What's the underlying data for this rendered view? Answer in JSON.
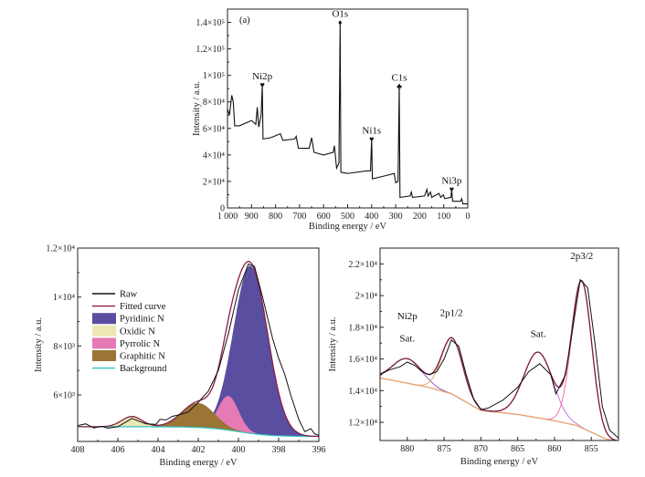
{
  "chart_data": [
    {
      "type": "line",
      "panel_label": "(a)",
      "xlabel": "Binding energy / eV",
      "ylabel": "Intensity / a.u.",
      "xlim": [
        1000,
        0
      ],
      "ylim": [
        0,
        150000
      ],
      "x_ticks": [
        1000,
        900,
        800,
        700,
        600,
        500,
        400,
        300,
        200,
        100,
        0
      ],
      "x_tick_labels": [
        "1 000",
        "900",
        "800",
        "700",
        "600",
        "500",
        "400",
        "300",
        "200",
        "100",
        "0"
      ],
      "y_ticks": [
        0,
        20000,
        40000,
        60000,
        80000,
        100000,
        120000,
        140000
      ],
      "y_tick_labels": [
        "0",
        "2×10⁴",
        "4×10⁴",
        "6×10⁴",
        "8×10⁴",
        "1×10⁵",
        "1.2×10⁵",
        "1.4×10⁵"
      ],
      "grid": false,
      "series": [
        {
          "color": "#111111",
          "points": [
            [
              1000,
              75000
            ],
            [
              992,
              70000
            ],
            [
              982,
              85000
            ],
            [
              976,
              80000
            ],
            [
              970,
              62000
            ],
            [
              950,
              62000
            ],
            [
              900,
              66000
            ],
            [
              882,
              63000
            ],
            [
              876,
              76000
            ],
            [
              870,
              61000
            ],
            [
              860,
              70000
            ],
            [
              855,
              93000
            ],
            [
              852,
              52000
            ],
            [
              820,
              53000
            ],
            [
              780,
              56000
            ],
            [
              770,
              51000
            ],
            [
              720,
              52000
            ],
            [
              714,
              54000
            ],
            [
              705,
              45000
            ],
            [
              660,
              45000
            ],
            [
              650,
              53000
            ],
            [
              640,
              42000
            ],
            [
              600,
              40000
            ],
            [
              560,
              42000
            ],
            [
              555,
              47000
            ],
            [
              546,
              30000
            ],
            [
              536,
              34000
            ],
            [
              531,
              140000
            ],
            [
              528,
              27000
            ],
            [
              500,
              26000
            ],
            [
              420,
              28000
            ],
            [
              405,
              28000
            ],
            [
              400,
              52000
            ],
            [
              397,
              22000
            ],
            [
              350,
              24000
            ],
            [
              306,
              26000
            ],
            [
              300,
              19000
            ],
            [
              290,
              20000
            ],
            [
              285,
              92000
            ],
            [
              282,
              8000
            ],
            [
              240,
              9000
            ],
            [
              235,
              12000
            ],
            [
              230,
              8000
            ],
            [
              180,
              9000
            ],
            [
              170,
              14000
            ],
            [
              165,
              9000
            ],
            [
              155,
              12000
            ],
            [
              150,
              8000
            ],
            [
              120,
              11000
            ],
            [
              112,
              8000
            ],
            [
              102,
              10000
            ],
            [
              96,
              7000
            ],
            [
              70,
              8000
            ],
            [
              67,
              14000
            ],
            [
              63,
              5000
            ],
            [
              30,
              5000
            ],
            [
              25,
              7000
            ],
            [
              20,
              3000
            ],
            [
              0,
              3000
            ]
          ]
        }
      ],
      "annotations": [
        {
          "text": "O1s",
          "marker": "diamond",
          "x": 531,
          "y": 140000
        },
        {
          "text": "Ni2p",
          "marker": "heart",
          "x": 855,
          "y": 93000
        },
        {
          "text": "C1s",
          "marker": "club",
          "x": 285,
          "y": 92000
        },
        {
          "text": "Ni1s",
          "marker": "heart",
          "x": 400,
          "y": 52000
        },
        {
          "text": "Ni3p",
          "marker": "heart",
          "x": 67,
          "y": 14000
        }
      ]
    },
    {
      "type": "line",
      "xlabel": "Binding energy / eV",
      "ylabel": "Intensity / a.u.",
      "xlim": [
        408,
        396
      ],
      "ylim": [
        4100,
        12000
      ],
      "x_ticks": [
        408,
        406,
        404,
        402,
        400,
        398,
        396
      ],
      "x_tick_labels": [
        "408",
        "406",
        "404",
        "402",
        "400",
        "398",
        "396"
      ],
      "y_ticks": [
        6000,
        8000,
        10000,
        12000
      ],
      "y_tick_labels": [
        "6×10³",
        "8×10³",
        "1×10⁴",
        "1.2×10⁴"
      ],
      "grid": false,
      "legend_position": "left",
      "background": {
        "name": "Background",
        "color": "#2ec4c4",
        "low": 4300,
        "step": 400,
        "center": 400,
        "width": 0.8
      },
      "components": [
        {
          "name": "Pyridinic N",
          "color": "#5a4ea0",
          "center": 399.4,
          "height": 6850,
          "fwhm": 2.0
        },
        {
          "name": "Oxidic N",
          "color": "#ece7b4",
          "center": 405.3,
          "height": 420,
          "fwhm": 1.2
        },
        {
          "name": "Pyrrolic N",
          "color": "#e57ab4",
          "center": 400.5,
          "height": 1400,
          "fwhm": 1.2
        },
        {
          "name": "Graphitic N",
          "color": "#9a7535",
          "center": 402.0,
          "height": 1000,
          "fwhm": 1.9
        }
      ],
      "fitted": {
        "name": "Fitted curve",
        "color": "#8a1f4a"
      },
      "raw": {
        "name": "Raw",
        "color": "#111111",
        "points": [
          [
            408,
            4750
          ],
          [
            407.6,
            4820
          ],
          [
            407.2,
            4650
          ],
          [
            406.8,
            4720
          ],
          [
            406.5,
            4640
          ],
          [
            406,
            4700
          ],
          [
            405.3,
            5040
          ],
          [
            404.6,
            4820
          ],
          [
            404.1,
            4800
          ],
          [
            403.9,
            5000
          ],
          [
            403.6,
            4980
          ],
          [
            403.3,
            5120
          ],
          [
            403,
            5180
          ],
          [
            402.5,
            5300
          ],
          [
            402,
            5700
          ],
          [
            401.5,
            6150
          ],
          [
            401,
            7000
          ],
          [
            400.5,
            8500
          ],
          [
            400,
            10300
          ],
          [
            399.5,
            11350
          ],
          [
            399.2,
            11250
          ],
          [
            398.8,
            10000
          ],
          [
            398.3,
            8300
          ],
          [
            398,
            7500
          ],
          [
            397.7,
            6850
          ],
          [
            397.4,
            6000
          ],
          [
            397,
            5000
          ],
          [
            396.7,
            4500
          ],
          [
            396.4,
            4620
          ],
          [
            396.2,
            4400
          ],
          [
            396,
            4350
          ]
        ]
      },
      "legend": [
        "Raw",
        "Fitted curve",
        "Pyridinic N",
        "Oxidic N",
        "Pyrrolic N",
        "Graphitic N",
        "Background"
      ]
    },
    {
      "type": "line",
      "xlabel": "Binding energy / eV",
      "ylabel": "Intensity / a.u.",
      "xlim": [
        883.7,
        851.3
      ],
      "ylim": [
        10850,
        23000
      ],
      "x_ticks": [
        880,
        875,
        870,
        865,
        860,
        855
      ],
      "x_tick_labels": [
        "880",
        "875",
        "870",
        "865",
        "860",
        "855"
      ],
      "y_ticks": [
        12000,
        14000,
        16000,
        18000,
        20000,
        22000
      ],
      "y_tick_labels": [
        "1.2×10⁴",
        "1.4×10⁴",
        "1.6×10⁴",
        "1.8×10⁴",
        "2×10⁴",
        "2.2×10⁴"
      ],
      "grid": false,
      "background": {
        "color": "#e8a86a",
        "points": [
          [
            883.7,
            14800
          ],
          [
            877,
            14200
          ],
          [
            874,
            13800
          ],
          [
            870,
            12750
          ],
          [
            865,
            12500
          ],
          [
            860,
            12100
          ],
          [
            857,
            11800
          ],
          [
            853,
            10950
          ],
          [
            851.3,
            10800
          ]
        ]
      },
      "components": [
        {
          "color": "#8a5cc0",
          "center": 880.0,
          "height": 1550,
          "fwhm": 4.6
        },
        {
          "color": "#e8a86a",
          "center": 873.9,
          "height": 3550,
          "fwhm": 3.4
        },
        {
          "color": "#c77ad8",
          "center": 862.2,
          "height": 4150,
          "fwhm": 4.6
        },
        {
          "color": "#f070b0",
          "center": 856.3,
          "height": 9250,
          "fwhm": 3.2
        }
      ],
      "fitted": {
        "color": "#7a1a40"
      },
      "raw": {
        "color": "#111111",
        "points": [
          [
            883.7,
            15000
          ],
          [
            882.5,
            15300
          ],
          [
            881,
            15500
          ],
          [
            880,
            15800
          ],
          [
            879,
            15600
          ],
          [
            878,
            15200
          ],
          [
            877,
            15000
          ],
          [
            876,
            15200
          ],
          [
            875,
            16000
          ],
          [
            874,
            17200
          ],
          [
            873,
            16800
          ],
          [
            872,
            15000
          ],
          [
            871,
            13500
          ],
          [
            870,
            12800
          ],
          [
            869,
            12900
          ],
          [
            867,
            13400
          ],
          [
            865,
            14200
          ],
          [
            863.5,
            15200
          ],
          [
            862,
            15700
          ],
          [
            860.5,
            15000
          ],
          [
            859.8,
            13800
          ],
          [
            858.5,
            15000
          ],
          [
            857.5,
            18000
          ],
          [
            856.5,
            21000
          ],
          [
            855.5,
            20500
          ],
          [
            854.5,
            17000
          ],
          [
            853.5,
            13000
          ],
          [
            852.5,
            11500
          ],
          [
            851.3,
            11000
          ]
        ]
      },
      "annotations": [
        {
          "text": "Ni2p",
          "x": 880,
          "y": 18500
        },
        {
          "text": "Sat.",
          "x": 880,
          "y": 17100
        },
        {
          "text": "2p1/2",
          "x": 874,
          "y": 18700
        },
        {
          "text": "Sat.",
          "x": 862.2,
          "y": 17400
        },
        {
          "text": "2p3/2",
          "x": 856.3,
          "y": 22300
        }
      ]
    }
  ]
}
